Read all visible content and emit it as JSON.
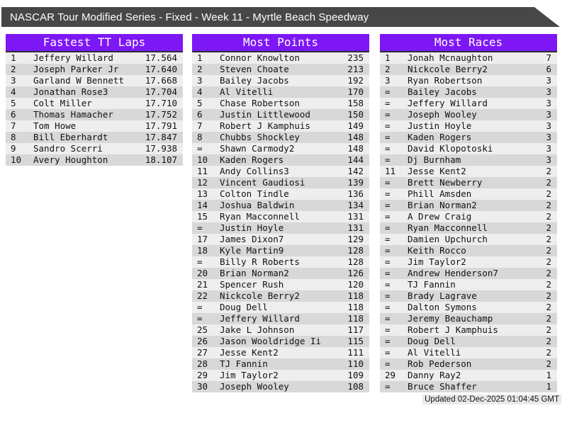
{
  "title": "NASCAR Tour Modified Series - Fixed - Week 11 - Myrtle Beach Speedway",
  "footer": {
    "updated": "Updated 02-Dec-2025 01:04:45 GMT"
  },
  "colors": {
    "accent_purple": "#7d17f5",
    "title_bar": "#474747",
    "row_odd": "#eeeeee",
    "row_even": "#d8d8d8"
  },
  "tables": [
    {
      "title": "Fastest TT Laps",
      "rows": [
        [
          "1",
          "Jeffery Willard",
          "17.564"
        ],
        [
          "2",
          "Joseph Parker Jr",
          "17.640"
        ],
        [
          "3",
          "Garland W Bennett",
          "17.668"
        ],
        [
          "4",
          "Jonathan Rose3",
          "17.704"
        ],
        [
          "5",
          "Colt Miller",
          "17.710"
        ],
        [
          "6",
          "Thomas Hamacher",
          "17.752"
        ],
        [
          "7",
          "Tom Howe",
          "17.791"
        ],
        [
          "8",
          "Bill Eberhardt",
          "17.847"
        ],
        [
          "9",
          "Sandro Scerri",
          "17.938"
        ],
        [
          "10",
          "Avery Houghton",
          "18.107"
        ]
      ]
    },
    {
      "title": "Most Points",
      "rows": [
        [
          "1",
          "Connor Knowlton",
          "235"
        ],
        [
          "2",
          "Steven Choate",
          "213"
        ],
        [
          "3",
          "Bailey Jacobs",
          "192"
        ],
        [
          "4",
          "Al Vitelli",
          "170"
        ],
        [
          "5",
          "Chase Robertson",
          "158"
        ],
        [
          "6",
          "Justin Littlewood",
          "150"
        ],
        [
          "7",
          "Robert J Kamphuis",
          "149"
        ],
        [
          "8",
          "Chubbs Shockley",
          "148"
        ],
        [
          "=",
          "Shawn Carmody2",
          "148"
        ],
        [
          "10",
          "Kaden Rogers",
          "144"
        ],
        [
          "11",
          "Andy Collins3",
          "142"
        ],
        [
          "12",
          "Vincent Gaudiosi",
          "139"
        ],
        [
          "13",
          "Colton Tindle",
          "136"
        ],
        [
          "14",
          "Joshua Baldwin",
          "134"
        ],
        [
          "15",
          "Ryan Macconnell",
          "131"
        ],
        [
          "=",
          "Justin Hoyle",
          "131"
        ],
        [
          "17",
          "James Dixon7",
          "129"
        ],
        [
          "18",
          "Kyle Martin9",
          "128"
        ],
        [
          "=",
          "Billy R Roberts",
          "128"
        ],
        [
          "20",
          "Brian Norman2",
          "126"
        ],
        [
          "21",
          "Spencer Rush",
          "120"
        ],
        [
          "22",
          "Nickcole Berry2",
          "118"
        ],
        [
          "=",
          "Doug Dell",
          "118"
        ],
        [
          "=",
          "Jeffery Willard",
          "118"
        ],
        [
          "25",
          "Jake L Johnson",
          "117"
        ],
        [
          "26",
          "Jason Wooldridge Ii",
          "115"
        ],
        [
          "27",
          "Jesse Kent2",
          "111"
        ],
        [
          "28",
          "TJ Fannin",
          "110"
        ],
        [
          "29",
          "Jim Taylor2",
          "109"
        ],
        [
          "30",
          "Joseph Wooley",
          "108"
        ]
      ]
    },
    {
      "title": "Most Races",
      "rows": [
        [
          "1",
          "Jonah Mcnaughton",
          "7"
        ],
        [
          "2",
          "Nickcole Berry2",
          "6"
        ],
        [
          "3",
          "Ryan Robertson",
          "3"
        ],
        [
          "=",
          "Bailey Jacobs",
          "3"
        ],
        [
          "=",
          "Jeffery Willard",
          "3"
        ],
        [
          "=",
          "Joseph Wooley",
          "3"
        ],
        [
          "=",
          "Justin Hoyle",
          "3"
        ],
        [
          "=",
          "Kaden Rogers",
          "3"
        ],
        [
          "=",
          "David Klopotoski",
          "3"
        ],
        [
          "=",
          "Dj Burnham",
          "3"
        ],
        [
          "11",
          "Jesse Kent2",
          "2"
        ],
        [
          "=",
          "Brett Newberry",
          "2"
        ],
        [
          "=",
          "Phill Amsden",
          "2"
        ],
        [
          "=",
          "Brian Norman2",
          "2"
        ],
        [
          "=",
          "A Drew Craig",
          "2"
        ],
        [
          "=",
          "Ryan Macconnell",
          "2"
        ],
        [
          "=",
          "Damien Upchurch",
          "2"
        ],
        [
          "=",
          "Keith Rocco",
          "2"
        ],
        [
          "=",
          "Jim Taylor2",
          "2"
        ],
        [
          "=",
          "Andrew Henderson7",
          "2"
        ],
        [
          "=",
          "TJ Fannin",
          "2"
        ],
        [
          "=",
          "Brady Lagrave",
          "2"
        ],
        [
          "=",
          "Dalton Symons",
          "2"
        ],
        [
          "=",
          "Jeremy Beauchamp",
          "2"
        ],
        [
          "=",
          "Robert J Kamphuis",
          "2"
        ],
        [
          "=",
          "Doug Dell",
          "2"
        ],
        [
          "=",
          "Al Vitelli",
          "2"
        ],
        [
          "=",
          "Rob Pederson",
          "2"
        ],
        [
          "29",
          "Danny Ray2",
          "1"
        ],
        [
          "=",
          "Bruce Shaffer",
          "1"
        ]
      ]
    }
  ]
}
